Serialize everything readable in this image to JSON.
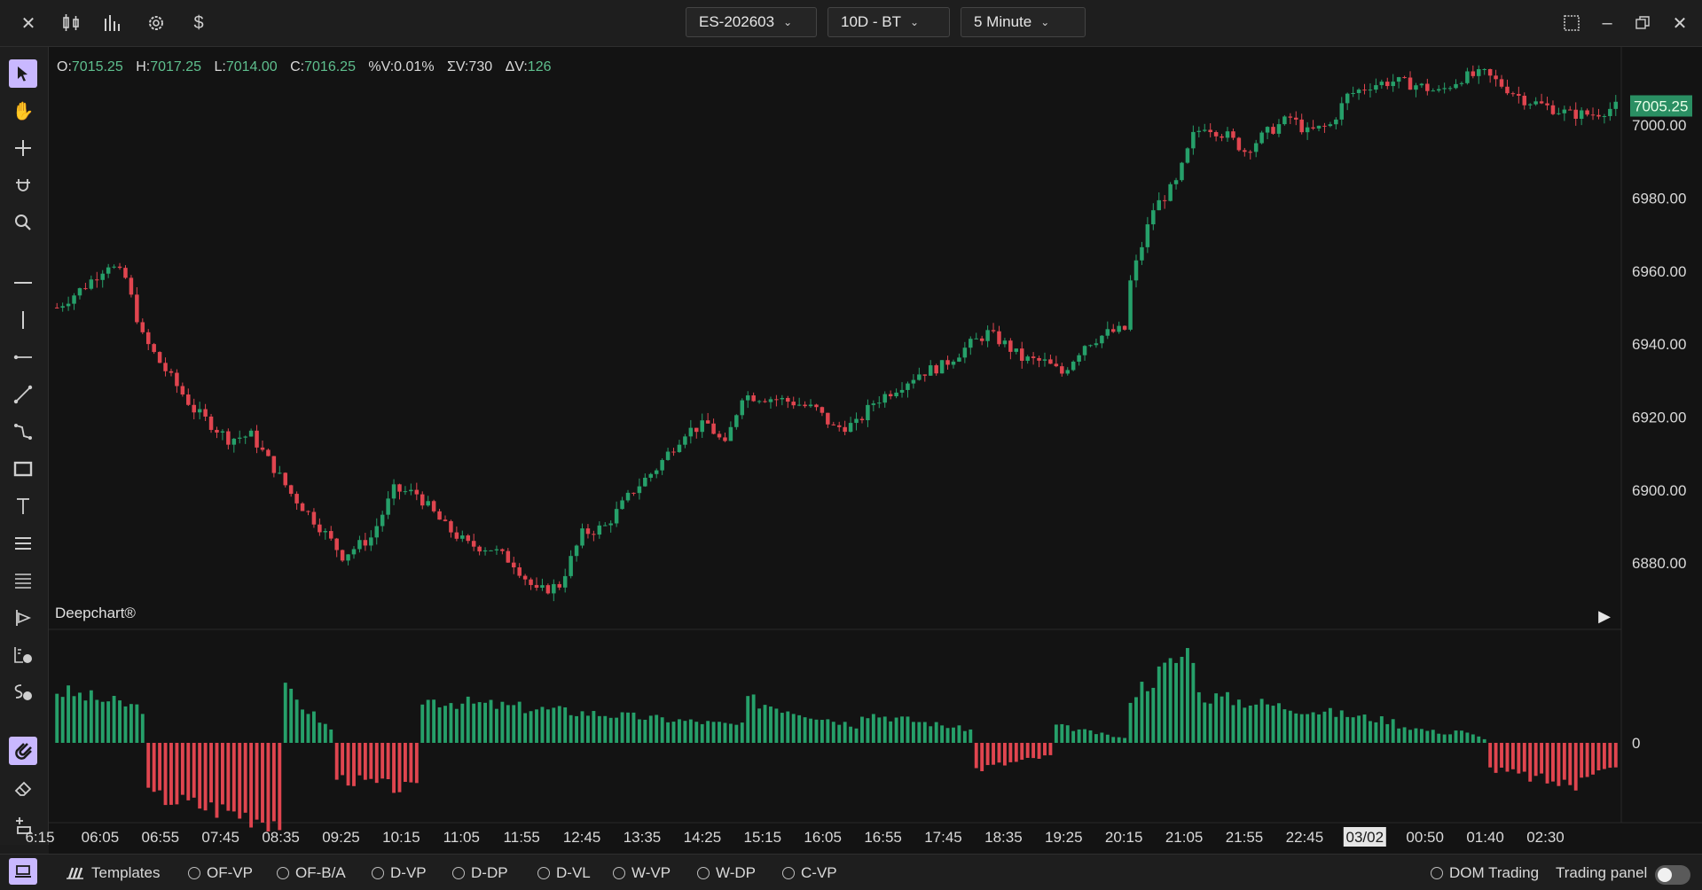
{
  "topbar": {
    "close_icon": "close-icon",
    "chart_type_icon": "candlestick-icon",
    "indicators_icon": "bar-chart-icon",
    "settings_icon": "gear-icon",
    "trading_icon": "dollar-icon",
    "symbol": "ES-202603",
    "range": "10D - BT",
    "interval": "5 Minute",
    "window_icons": [
      "fullscreen-icon",
      "minimize-icon",
      "restore-icon",
      "close-icon"
    ]
  },
  "ohlc": {
    "o_label": "O:",
    "o": "7015.25",
    "h_label": "H:",
    "h": "7017.25",
    "l_label": "L:",
    "l": "7014.00",
    "c_label": "C:",
    "c": "7016.25",
    "pv_label": "%V:",
    "pv": "0.01%",
    "sv_label": "ΣV:",
    "sv": "730",
    "dv_label": "ΔV:",
    "dv": "126"
  },
  "brand": "Deepchart®",
  "colors": {
    "up": "#26a06a",
    "down": "#e0454f",
    "price_tag": "#2a8f63",
    "accent": "#c9b8ff"
  },
  "chart_data": {
    "type": "candlestick",
    "ylim": [
      6864,
      7018
    ],
    "y_ticks": [
      "7000.00",
      "6980.00",
      "6960.00",
      "6940.00",
      "6920.00",
      "6900.00",
      "6880.00"
    ],
    "y_tick_values": [
      7000,
      6980,
      6960,
      6940,
      6920,
      6900,
      6880
    ],
    "last_price": "7005.25",
    "last_price_value": 7005.25,
    "x_ticks": [
      "6:15",
      "06:05",
      "06:55",
      "07:45",
      "08:35",
      "09:25",
      "10:15",
      "11:05",
      "11:55",
      "12:45",
      "13:35",
      "14:25",
      "15:15",
      "16:05",
      "16:55",
      "17:45",
      "18:35",
      "19:25",
      "20:15",
      "21:05",
      "21:55",
      "22:45",
      "03/02",
      "00:50",
      "01:40",
      "02:30"
    ],
    "highlighted_x_tick": "03/02",
    "close_path": [
      [
        0,
        6950
      ],
      [
        5,
        6956
      ],
      [
        9,
        6962
      ],
      [
        12,
        6958
      ],
      [
        15,
        6942
      ],
      [
        18,
        6935
      ],
      [
        24,
        6922
      ],
      [
        30,
        6914
      ],
      [
        34,
        6915
      ],
      [
        38,
        6906
      ],
      [
        41,
        6899
      ],
      [
        46,
        6890
      ],
      [
        50,
        6882
      ],
      [
        55,
        6887
      ],
      [
        59,
        6900
      ],
      [
        63,
        6899
      ],
      [
        68,
        6890
      ],
      [
        72,
        6885
      ],
      [
        76,
        6884
      ],
      [
        80,
        6880
      ],
      [
        84,
        6872
      ],
      [
        88,
        6874
      ],
      [
        92,
        6888
      ],
      [
        96,
        6890
      ],
      [
        101,
        6900
      ],
      [
        105,
        6906
      ],
      [
        110,
        6916
      ],
      [
        114,
        6918
      ],
      [
        117,
        6912
      ],
      [
        120,
        6926
      ],
      [
        126,
        6925
      ],
      [
        129,
        6924
      ],
      [
        133,
        6922
      ],
      [
        136,
        6917
      ],
      [
        140,
        6918
      ],
      [
        143,
        6924
      ],
      [
        147,
        6928
      ],
      [
        151,
        6932
      ],
      [
        155,
        6934
      ],
      [
        160,
        6940
      ],
      [
        163,
        6943
      ],
      [
        166,
        6940
      ],
      [
        169,
        6936
      ],
      [
        173,
        6935
      ],
      [
        176,
        6932
      ],
      [
        180,
        6940
      ],
      [
        184,
        6943
      ],
      [
        187,
        6944
      ],
      [
        188,
        6957
      ],
      [
        192,
        6977
      ],
      [
        196,
        6984
      ],
      [
        199,
        6997
      ],
      [
        201,
        7000
      ],
      [
        205,
        6997
      ],
      [
        208,
        6993
      ],
      [
        212,
        6998
      ],
      [
        216,
        7002
      ],
      [
        219,
        6998
      ],
      [
        223,
        7000
      ],
      [
        226,
        7008
      ],
      [
        230,
        7011
      ],
      [
        234,
        7012
      ],
      [
        238,
        7011
      ],
      [
        242,
        7009
      ],
      [
        246,
        7013
      ],
      [
        250,
        7014
      ],
      [
        254,
        7010
      ],
      [
        257,
        7007
      ],
      [
        261,
        7005
      ],
      [
        265,
        7003
      ],
      [
        269,
        7003
      ],
      [
        273,
        7005
      ]
    ],
    "candle_count": 274,
    "delta_ylim": [
      -21,
      21
    ],
    "delta_zero_label": "0",
    "delta_segments": [
      [
        0,
        15,
        12,
        8
      ],
      [
        16,
        39,
        -12,
        -18
      ],
      [
        40,
        48,
        12,
        3
      ],
      [
        49,
        63,
        -8,
        -11
      ],
      [
        64,
        120,
        10,
        4
      ],
      [
        121,
        140,
        10,
        4
      ],
      [
        141,
        160,
        7,
        3
      ],
      [
        161,
        174,
        -6,
        -3
      ],
      [
        175,
        187,
        4,
        1
      ],
      [
        188,
        199,
        11,
        22
      ],
      [
        200,
        234,
        11,
        5
      ],
      [
        235,
        244,
        4,
        2
      ],
      [
        245,
        250,
        3,
        1
      ],
      [
        251,
        266,
        -6,
        -10
      ],
      [
        267,
        273,
        -7,
        -6
      ]
    ]
  },
  "left_toolbar": [
    "cursor-icon",
    "hand-icon",
    "crosshair-icon",
    "magnet-cursor-icon",
    "zoom-icon",
    "horizontal-line-icon",
    "vertical-line-icon",
    "ray-icon",
    "trend-line-icon",
    "channel-icon",
    "rectangle-icon",
    "text-icon",
    "fib-icon",
    "lines-icon",
    "tools-icon",
    "bars-icon",
    "stats-icon",
    "magnet-icon",
    "eraser-icon",
    "layers-icon"
  ],
  "bottombar": {
    "templates_label": "Templates",
    "studies": [
      "OF-VP",
      "OF-B/A",
      "D-VP",
      "D-DP",
      "D-VL",
      "W-VP",
      "W-DP",
      "C-VP"
    ],
    "dom_label": "DOM Trading",
    "panel_label": "Trading panel"
  }
}
